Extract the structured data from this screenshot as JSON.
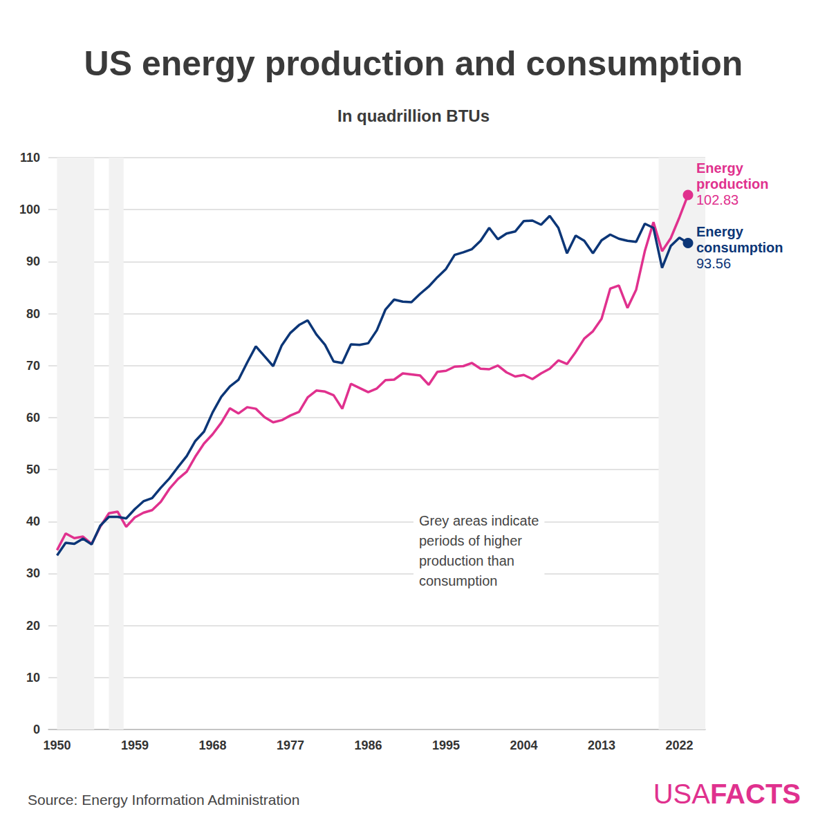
{
  "chart_data": {
    "type": "line",
    "title": "US energy production and consumption",
    "subtitle": "In quadrillion BTUs",
    "x": [
      1950,
      1951,
      1952,
      1953,
      1954,
      1955,
      1956,
      1957,
      1958,
      1959,
      1960,
      1961,
      1962,
      1963,
      1964,
      1965,
      1966,
      1967,
      1968,
      1969,
      1970,
      1971,
      1972,
      1973,
      1974,
      1975,
      1976,
      1977,
      1978,
      1979,
      1980,
      1981,
      1982,
      1983,
      1984,
      1985,
      1986,
      1987,
      1988,
      1989,
      1990,
      1991,
      1992,
      1993,
      1994,
      1995,
      1996,
      1997,
      1998,
      1999,
      2000,
      2001,
      2002,
      2003,
      2004,
      2005,
      2006,
      2007,
      2008,
      2009,
      2010,
      2011,
      2012,
      2013,
      2014,
      2015,
      2016,
      2017,
      2018,
      2019,
      2020,
      2021,
      2022,
      2023
    ],
    "series": [
      {
        "name": "Energy production",
        "color": "#e0318e",
        "values": [
          34.5,
          37.7,
          36.8,
          37.1,
          35.7,
          39.0,
          41.6,
          41.9,
          39.0,
          40.8,
          41.7,
          42.2,
          43.8,
          46.3,
          48.2,
          49.6,
          52.5,
          55.0,
          56.8,
          59.0,
          61.8,
          60.8,
          62.0,
          61.7,
          60.1,
          59.1,
          59.5,
          60.4,
          61.1,
          63.9,
          65.2,
          65.0,
          64.3,
          61.7,
          66.5,
          65.7,
          64.9,
          65.6,
          67.2,
          67.3,
          68.5,
          68.3,
          68.1,
          66.3,
          68.8,
          69.0,
          69.8,
          69.9,
          70.5,
          69.4,
          69.3,
          70.0,
          68.7,
          67.9,
          68.2,
          67.4,
          68.5,
          69.4,
          71.0,
          70.3,
          72.6,
          75.2,
          76.6,
          79.0,
          84.8,
          85.4,
          81.1,
          84.6,
          92.0,
          97.6,
          92.0,
          94.5,
          98.5,
          102.83
        ]
      },
      {
        "name": "Energy consumption",
        "color": "#0c3677",
        "values": [
          33.5,
          35.9,
          35.7,
          36.7,
          35.6,
          39.2,
          40.9,
          40.9,
          40.6,
          42.4,
          43.9,
          44.5,
          46.5,
          48.3,
          50.5,
          52.6,
          55.5,
          57.3,
          61.0,
          64.0,
          66.0,
          67.3,
          70.6,
          73.7,
          71.8,
          69.9,
          73.9,
          76.3,
          77.8,
          78.7,
          76.0,
          74.0,
          70.8,
          70.5,
          74.1,
          74.0,
          74.3,
          76.8,
          80.8,
          82.7,
          82.3,
          82.2,
          83.8,
          85.2,
          87.0,
          88.6,
          91.3,
          91.8,
          92.4,
          94.0,
          96.5,
          94.3,
          95.4,
          95.8,
          97.8,
          97.9,
          97.1,
          98.8,
          96.5,
          91.6,
          95.0,
          94.0,
          91.6,
          94.1,
          95.2,
          94.4,
          94.0,
          93.8,
          97.3,
          96.5,
          88.8,
          93.0,
          94.6,
          93.56
        ]
      }
    ],
    "xlim": [
      1949,
      2025
    ],
    "xticks": [
      1950,
      1959,
      1968,
      1977,
      1986,
      1995,
      2004,
      2013,
      2022
    ],
    "ylim": [
      0,
      110
    ],
    "yticks": [
      0,
      10,
      20,
      30,
      40,
      50,
      60,
      70,
      80,
      90,
      100,
      110
    ],
    "grid": true,
    "shaded_ranges": [
      [
        1950,
        1954.3
      ],
      [
        1956,
        1957.7
      ],
      [
        2019.6,
        2025
      ]
    ],
    "annotation": "Grey areas indicate\nperiods of higher\nproduction than\nconsumption",
    "source": "Source: Energy Information Administration",
    "branding": {
      "light": "USA",
      "bold": "FACTS"
    }
  }
}
